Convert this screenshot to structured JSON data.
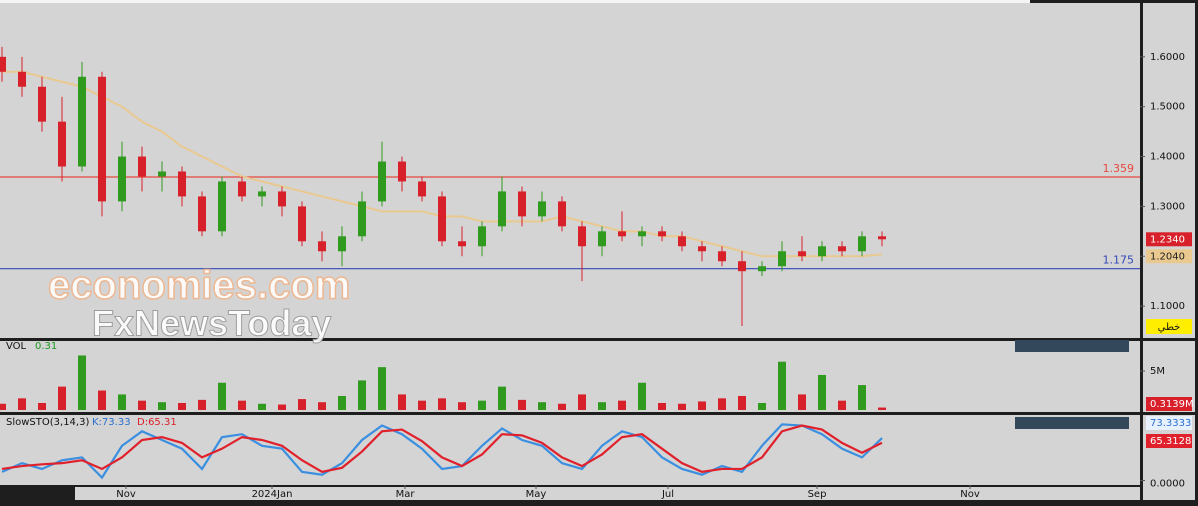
{
  "watermark": {
    "line1": "economies.com",
    "line2": "FxNewsToday"
  },
  "chart_data": [
    {
      "type": "candlestick",
      "open": [
        1.6,
        1.57,
        1.54,
        1.47,
        1.38,
        1.56,
        1.31,
        1.4,
        1.36,
        1.37,
        1.32,
        1.25,
        1.35,
        1.32,
        1.33,
        1.3,
        1.23,
        1.21,
        1.24,
        1.31,
        1.39,
        1.35,
        1.32,
        1.23,
        1.22,
        1.26,
        1.33,
        1.28,
        1.31,
        1.26,
        1.22,
        1.25,
        1.24,
        1.25,
        1.24,
        1.22,
        1.21,
        1.19,
        1.17,
        1.18,
        1.21,
        1.2,
        1.22,
        1.21,
        1.24
      ],
      "high": [
        1.62,
        1.6,
        1.56,
        1.52,
        1.59,
        1.57,
        1.43,
        1.42,
        1.39,
        1.38,
        1.33,
        1.36,
        1.36,
        1.34,
        1.34,
        1.31,
        1.25,
        1.26,
        1.33,
        1.43,
        1.4,
        1.36,
        1.33,
        1.26,
        1.27,
        1.36,
        1.34,
        1.33,
        1.32,
        1.27,
        1.26,
        1.29,
        1.26,
        1.26,
        1.25,
        1.23,
        1.22,
        1.21,
        1.19,
        1.23,
        1.24,
        1.23,
        1.23,
        1.25,
        1.25
      ],
      "low": [
        1.55,
        1.52,
        1.45,
        1.35,
        1.37,
        1.28,
        1.29,
        1.33,
        1.33,
        1.3,
        1.24,
        1.24,
        1.31,
        1.3,
        1.28,
        1.22,
        1.19,
        1.18,
        1.23,
        1.3,
        1.33,
        1.31,
        1.22,
        1.2,
        1.2,
        1.25,
        1.26,
        1.27,
        1.25,
        1.15,
        1.2,
        1.23,
        1.22,
        1.23,
        1.21,
        1.19,
        1.18,
        1.06,
        1.16,
        1.17,
        1.19,
        1.19,
        1.2,
        1.2,
        1.22
      ],
      "close": [
        1.57,
        1.54,
        1.47,
        1.38,
        1.56,
        1.31,
        1.4,
        1.36,
        1.37,
        1.32,
        1.25,
        1.35,
        1.32,
        1.33,
        1.3,
        1.23,
        1.21,
        1.24,
        1.31,
        1.39,
        1.35,
        1.32,
        1.23,
        1.22,
        1.26,
        1.33,
        1.28,
        1.31,
        1.26,
        1.22,
        1.25,
        1.24,
        1.25,
        1.24,
        1.22,
        1.21,
        1.19,
        1.17,
        1.18,
        1.21,
        1.2,
        1.22,
        1.21,
        1.24,
        1.234
      ],
      "up_color": "#2f9a1e",
      "down_color": "#d8202a",
      "ma": {
        "color": "#e9c98f",
        "values": [
          1.57,
          1.57,
          1.56,
          1.55,
          1.54,
          1.52,
          1.5,
          1.47,
          1.45,
          1.42,
          1.4,
          1.38,
          1.36,
          1.35,
          1.34,
          1.33,
          1.32,
          1.31,
          1.3,
          1.29,
          1.29,
          1.29,
          1.28,
          1.28,
          1.27,
          1.27,
          1.27,
          1.27,
          1.28,
          1.27,
          1.26,
          1.25,
          1.25,
          1.24,
          1.24,
          1.23,
          1.22,
          1.21,
          1.2,
          1.2,
          1.2,
          1.2,
          1.2,
          1.2,
          1.204
        ]
      },
      "levels": [
        {
          "value": 1.359,
          "color": "#e8473f"
        },
        {
          "value": 1.175,
          "color": "#3548b8"
        }
      ],
      "last_tag": {
        "value": 1.234,
        "label": "1.2340",
        "color": "#d8202a"
      },
      "ma_tag": {
        "value": 1.204,
        "label": "1.2040",
        "color": "#e9c98f"
      },
      "mode_label": "خطي",
      "ylim": [
        1.036,
        1.708
      ],
      "yticks": [
        {
          "value": 1.1,
          "label": "1.1000"
        },
        {
          "value": 1.2,
          "label": "1.2000"
        },
        {
          "value": 1.3,
          "label": "1.3000"
        },
        {
          "value": 1.4,
          "label": "1.4000"
        },
        {
          "value": 1.5,
          "label": "1.5000"
        },
        {
          "value": 1.6,
          "label": "1.6000"
        }
      ],
      "xlim": [
        -0.1,
        56.9
      ],
      "xticks": [
        {
          "value": 6.2,
          "label": "Nov"
        },
        {
          "value": 13.5,
          "label": "2024Jan"
        },
        {
          "value": 20.15,
          "label": "Mar"
        },
        {
          "value": 26.7,
          "label": "May"
        },
        {
          "value": 33.3,
          "label": "Jul"
        },
        {
          "value": 40.75,
          "label": "Sep"
        },
        {
          "value": 48.4,
          "label": "Nov"
        }
      ]
    },
    {
      "type": "volume",
      "title": "VOL",
      "current": "0.31",
      "values": [
        0.8,
        1.5,
        0.9,
        3.0,
        7.0,
        2.5,
        2.0,
        1.2,
        1.0,
        0.9,
        1.3,
        3.5,
        1.2,
        0.8,
        0.7,
        1.4,
        1.0,
        1.8,
        3.8,
        5.5,
        2.0,
        1.2,
        1.5,
        1.0,
        1.2,
        3.0,
        1.3,
        1.0,
        0.8,
        2.0,
        1.0,
        1.2,
        3.5,
        0.9,
        0.8,
        1.1,
        1.5,
        1.8,
        0.9,
        6.2,
        2.0,
        4.5,
        1.2,
        3.2,
        0.3139
      ],
      "last_tag": {
        "value": 0.3139,
        "label": "0.3139M",
        "color": "#d8202a"
      },
      "ylim": [
        0,
        8.6
      ],
      "yticks": [
        {
          "value": 5,
          "label": "5M"
        }
      ]
    },
    {
      "type": "stochastic",
      "title": "SlowSTO(3,14,3)",
      "series": [
        {
          "name": "K:73.33",
          "color": "#3b8fe0",
          "values": [
            15,
            30,
            20,
            35,
            40,
            5,
            60,
            85,
            70,
            55,
            20,
            75,
            80,
            60,
            55,
            15,
            10,
            30,
            70,
            95,
            80,
            55,
            20,
            25,
            60,
            90,
            70,
            60,
            30,
            20,
            60,
            85,
            75,
            40,
            20,
            10,
            25,
            15,
            60,
            97,
            95,
            80,
            55,
            40,
            73.33
          ],
          "tag": "73.3333"
        },
        {
          "name": "D:65.31",
          "color": "#e0202a",
          "values": [
            20,
            25,
            28,
            30,
            35,
            20,
            40,
            70,
            75,
            65,
            40,
            55,
            75,
            70,
            60,
            35,
            15,
            22,
            50,
            85,
            88,
            68,
            40,
            25,
            45,
            80,
            78,
            65,
            40,
            25,
            45,
            75,
            80,
            55,
            30,
            15,
            20,
            20,
            40,
            85,
            95,
            88,
            65,
            48,
            65.31
          ],
          "tag": "65.3128"
        }
      ],
      "ylim": [
        -6,
        108
      ],
      "yticks": [
        {
          "value": 0,
          "label": "0.0000"
        }
      ]
    }
  ]
}
